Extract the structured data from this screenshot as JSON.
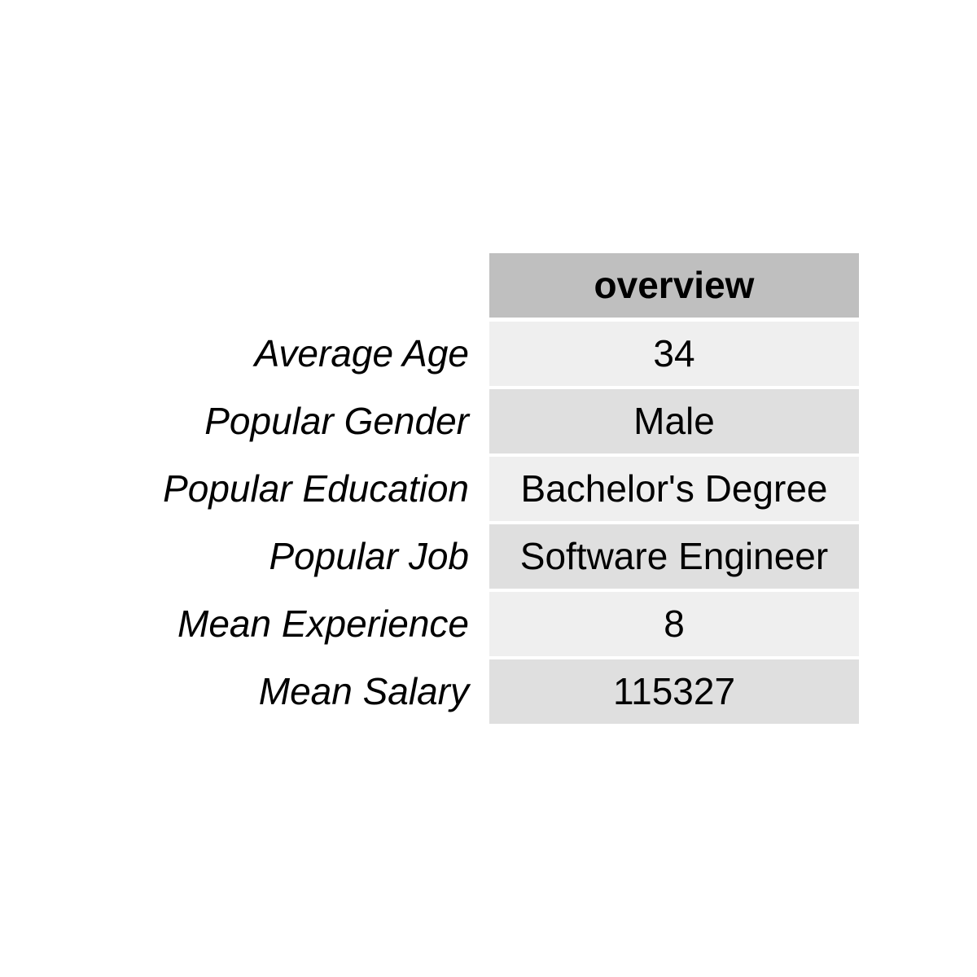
{
  "chart_data": {
    "type": "table",
    "columns": [
      "overview"
    ],
    "rows": [
      {
        "label": "Average Age",
        "value": "34"
      },
      {
        "label": "Popular Gender",
        "value": "Male"
      },
      {
        "label": "Popular Education",
        "value": "Bachelor's Degree"
      },
      {
        "label": "Popular Job",
        "value": "Software Engineer"
      },
      {
        "label": "Mean Experience",
        "value": "8"
      },
      {
        "label": "Mean Salary",
        "value": "115327"
      }
    ]
  },
  "colors": {
    "header_bg": "#bfbfbf",
    "row_odd_bg": "#efefef",
    "row_even_bg": "#dfdfdf",
    "text": "#000000"
  }
}
